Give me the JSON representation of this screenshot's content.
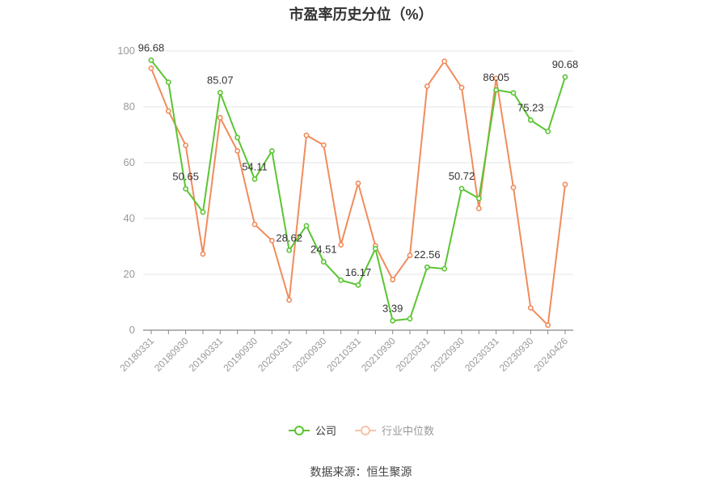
{
  "chart_data": {
    "type": "line",
    "title": "市盈率历史分位（%）",
    "xlabel": "",
    "ylabel": "",
    "ylim": [
      0,
      100
    ],
    "yticks": [
      0,
      20,
      40,
      60,
      80,
      100
    ],
    "grid": true,
    "legend_position": "bottom",
    "x": [
      "20180331",
      "20180630",
      "20180930",
      "20181231",
      "20190331",
      "20190630",
      "20190930",
      "20191231",
      "20200331",
      "20200630",
      "20200930",
      "20201231",
      "20210331",
      "20210630",
      "20210930",
      "20211231",
      "20220331",
      "20220630",
      "20220930",
      "20221231",
      "20230331",
      "20230630",
      "20230930",
      "20231231",
      "20240426"
    ],
    "xticks": [
      "20180331",
      "20180930",
      "20190331",
      "20190930",
      "20200331",
      "20200930",
      "20210331",
      "20210930",
      "20220331",
      "20220930",
      "20230331",
      "20230930",
      "20240426"
    ],
    "series": [
      {
        "name": "公司",
        "color": "#5ac531",
        "values": [
          96.68,
          88.8,
          50.65,
          42.3,
          85.07,
          69.0,
          54.11,
          64.2,
          28.62,
          37.4,
          24.51,
          17.9,
          16.17,
          29.2,
          3.39,
          4.1,
          22.56,
          22.0,
          50.72,
          47.2,
          86.05,
          85.0,
          75.23,
          71.2,
          90.68
        ],
        "labels": {
          "0": "96.68",
          "2": "50.65",
          "4": "85.07",
          "6": "54.11",
          "8": "28.62",
          "10": "24.51",
          "12": "16.17",
          "14": "3.39",
          "16": "22.56",
          "18": "50.72",
          "20": "86.05",
          "22": "75.23",
          "24": "90.68"
        }
      },
      {
        "name": "行业中位数",
        "color": "#f08c5c",
        "values": [
          93.8,
          78.5,
          66.2,
          27.3,
          76.1,
          64.2,
          37.9,
          32.1,
          10.8,
          69.8,
          66.3,
          30.6,
          52.6,
          30.2,
          18.1,
          26.8,
          87.4,
          96.3,
          86.9,
          43.6,
          90.2,
          51.1,
          8.0,
          1.8,
          52.2
        ]
      }
    ]
  },
  "footer": {
    "source": "数据来源：恒生聚源"
  }
}
